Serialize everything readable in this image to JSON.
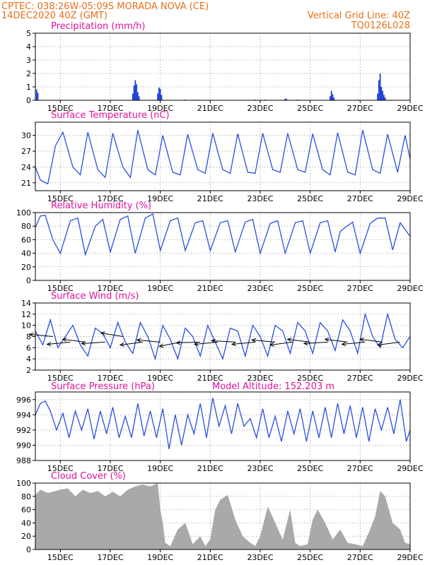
{
  "header": {
    "line1_left": "CPTEC:  038:26W-05:09S  MORADA NOVA (CE)",
    "line2_left": "14DEC2020 40Z (GMT)",
    "line1_right": "Vertical Grid Line: 40Z",
    "line2_right": "TQ0126L028"
  },
  "colors": {
    "header": "#e8701a",
    "panel_title": "#e0139c",
    "series_line": "#2a4fe0",
    "precip_bar": "#1f3fd8",
    "cloud_fill": "#a9a9a9",
    "wind_arrow": "#000000"
  },
  "chart_data": [
    {
      "type": "bar",
      "title": "Precipitation (mm/h)",
      "x_ticks": [
        "15DEC",
        "17DEC",
        "19DEC",
        "21DEC",
        "23DEC",
        "25DEC",
        "27DEC",
        "29DEC"
      ],
      "xlim_days": [
        14,
        29
      ],
      "ylim": [
        0,
        5
      ],
      "y_ticks": [
        0,
        1,
        2,
        3,
        4,
        5
      ],
      "grid": true,
      "bars": [
        {
          "day": 14.05,
          "value": 0.8
        },
        {
          "day": 14.1,
          "value": 0.55
        },
        {
          "day": 17.9,
          "value": 0.5
        },
        {
          "day": 17.95,
          "value": 1.1
        },
        {
          "day": 18.0,
          "value": 1.5
        },
        {
          "day": 18.05,
          "value": 1.2
        },
        {
          "day": 18.1,
          "value": 0.6
        },
        {
          "day": 18.15,
          "value": 0.3
        },
        {
          "day": 18.9,
          "value": 0.5
        },
        {
          "day": 18.95,
          "value": 0.95
        },
        {
          "day": 19.0,
          "value": 0.85
        },
        {
          "day": 19.05,
          "value": 0.4
        },
        {
          "day": 20.0,
          "value": 0.05
        },
        {
          "day": 20.5,
          "value": 0.04
        },
        {
          "day": 22.8,
          "value": 0.05
        },
        {
          "day": 23.2,
          "value": 0.05
        },
        {
          "day": 24.0,
          "value": 0.1
        },
        {
          "day": 24.05,
          "value": 0.12
        },
        {
          "day": 24.5,
          "value": 0.05
        },
        {
          "day": 25.8,
          "value": 0.3
        },
        {
          "day": 25.85,
          "value": 0.7
        },
        {
          "day": 25.9,
          "value": 0.45
        },
        {
          "day": 25.95,
          "value": 0.2
        },
        {
          "day": 26.9,
          "value": 0.05
        },
        {
          "day": 27.7,
          "value": 0.5
        },
        {
          "day": 27.75,
          "value": 1.5
        },
        {
          "day": 27.8,
          "value": 2.0
        },
        {
          "day": 27.85,
          "value": 1.0
        },
        {
          "day": 27.9,
          "value": 0.7
        },
        {
          "day": 27.95,
          "value": 0.4
        },
        {
          "day": 28.0,
          "value": 0.2
        }
      ]
    },
    {
      "type": "line",
      "title": "Surface Temperature (nC)",
      "x_ticks": [
        "15DEC",
        "17DEC",
        "19DEC",
        "21DEC",
        "23DEC",
        "25DEC",
        "27DEC",
        "29DEC"
      ],
      "xlim_days": [
        14,
        29
      ],
      "ylim": [
        19.5,
        32.5
      ],
      "y_ticks": [
        21,
        24,
        27,
        30
      ],
      "grid": true,
      "x_days": [
        14.0,
        14.2,
        14.5,
        14.8,
        15.1,
        15.5,
        15.8,
        16.1,
        16.5,
        16.8,
        17.1,
        17.5,
        17.8,
        18.1,
        18.5,
        18.8,
        19.1,
        19.5,
        19.8,
        20.1,
        20.5,
        20.8,
        21.1,
        21.5,
        21.8,
        22.1,
        22.5,
        22.8,
        23.1,
        23.5,
        23.8,
        24.1,
        24.5,
        24.8,
        25.1,
        25.5,
        25.8,
        26.1,
        26.5,
        26.8,
        27.1,
        27.5,
        27.8,
        28.1,
        28.5,
        28.8,
        29.0
      ],
      "values": [
        24.0,
        21.5,
        20.8,
        28.0,
        30.6,
        24.0,
        22.5,
        30.6,
        23.5,
        22.0,
        30.4,
        24.0,
        22.0,
        31.0,
        23.5,
        22.5,
        30.0,
        23.0,
        22.5,
        30.2,
        23.5,
        22.8,
        30.4,
        23.5,
        22.8,
        30.3,
        23.0,
        22.8,
        30.4,
        23.5,
        23.0,
        30.4,
        23.5,
        23.0,
        30.3,
        23.5,
        22.5,
        30.5,
        23.0,
        22.5,
        31.0,
        23.5,
        22.8,
        30.2,
        23.0,
        30.0,
        25.5
      ]
    },
    {
      "type": "line",
      "title": "Relative Humidity (%)",
      "x_ticks": [
        "15DEC",
        "17DEC",
        "19DEC",
        "21DEC",
        "23DEC",
        "25DEC",
        "27DEC",
        "29DEC"
      ],
      "xlim_days": [
        14,
        29
      ],
      "ylim": [
        0,
        100
      ],
      "y_ticks": [
        0,
        20,
        40,
        60,
        80,
        100
      ],
      "grid": true,
      "x_days": [
        14.0,
        14.2,
        14.4,
        14.7,
        15.0,
        15.4,
        15.7,
        16.0,
        16.4,
        16.7,
        17.0,
        17.4,
        17.7,
        18.0,
        18.4,
        18.7,
        19.0,
        19.4,
        19.7,
        20.0,
        20.4,
        20.7,
        21.0,
        21.4,
        21.7,
        22.0,
        22.4,
        22.7,
        23.0,
        23.4,
        23.7,
        24.0,
        24.4,
        24.7,
        25.0,
        25.4,
        25.7,
        26.0,
        26.2,
        26.4,
        26.7,
        27.0,
        27.4,
        27.7,
        28.0,
        28.3,
        28.6,
        29.0
      ],
      "values": [
        78,
        95,
        96,
        60,
        40,
        88,
        92,
        38,
        80,
        90,
        42,
        90,
        95,
        40,
        92,
        98,
        44,
        88,
        92,
        44,
        85,
        88,
        44,
        85,
        88,
        42,
        86,
        90,
        40,
        84,
        88,
        40,
        85,
        88,
        40,
        85,
        88,
        42,
        72,
        78,
        86,
        40,
        84,
        92,
        92,
        45,
        85,
        65
      ]
    },
    {
      "type": "line",
      "title": "Surface Wind (m/s)",
      "x_ticks": [
        "15DEC",
        "17DEC",
        "19DEC",
        "21DEC",
        "23DEC",
        "25DEC",
        "27DEC",
        "29DEC"
      ],
      "xlim_days": [
        14,
        29
      ],
      "ylim": [
        2,
        14
      ],
      "y_ticks": [
        2,
        4,
        6,
        8,
        10,
        12,
        14
      ],
      "grid": true,
      "x_days": [
        14.0,
        14.3,
        14.6,
        14.9,
        15.2,
        15.5,
        15.8,
        16.1,
        16.4,
        16.7,
        17.0,
        17.3,
        17.6,
        17.9,
        18.2,
        18.5,
        18.8,
        19.1,
        19.4,
        19.7,
        20.0,
        20.3,
        20.6,
        20.9,
        21.2,
        21.5,
        21.8,
        22.1,
        22.4,
        22.7,
        23.0,
        23.3,
        23.6,
        23.9,
        24.2,
        24.5,
        24.8,
        25.1,
        25.4,
        25.7,
        26.0,
        26.3,
        26.6,
        26.9,
        27.2,
        27.5,
        27.8,
        28.1,
        28.4,
        28.7,
        29.0
      ],
      "values": [
        9.0,
        6.5,
        11.0,
        6.0,
        8.0,
        10.0,
        6.5,
        4.5,
        9.5,
        8.5,
        6.0,
        10.5,
        7.0,
        5.0,
        10.5,
        8.0,
        4.0,
        10.0,
        7.5,
        4.0,
        9.5,
        8.0,
        4.5,
        10.0,
        7.0,
        4.0,
        9.5,
        9.0,
        4.5,
        10.0,
        8.0,
        4.5,
        10.0,
        9.0,
        5.0,
        10.5,
        9.0,
        5.0,
        10.5,
        9.0,
        5.5,
        11.0,
        9.0,
        5.0,
        12.0,
        8.0,
        6.0,
        12.0,
        7.5,
        6.0,
        8.0
      ],
      "arrows": [
        {
          "day": 14.7,
          "speed": 8,
          "dir_deg": 165
        },
        {
          "day": 15.4,
          "speed": 7,
          "dir_deg": 195
        },
        {
          "day": 16.0,
          "speed": 7,
          "dir_deg": 160
        },
        {
          "day": 16.8,
          "speed": 7,
          "dir_deg": 190
        },
        {
          "day": 17.5,
          "speed": 8,
          "dir_deg": 155
        },
        {
          "day": 18.3,
          "speed": 7,
          "dir_deg": 200
        },
        {
          "day": 19.0,
          "speed": 7,
          "dir_deg": 165
        },
        {
          "day": 19.8,
          "speed": 7,
          "dir_deg": 210
        },
        {
          "day": 20.6,
          "speed": 7,
          "dir_deg": 185
        },
        {
          "day": 21.3,
          "speed": 7,
          "dir_deg": 195
        },
        {
          "day": 22.0,
          "speed": 7,
          "dir_deg": 170
        },
        {
          "day": 22.8,
          "speed": 7,
          "dir_deg": 195
        },
        {
          "day": 23.6,
          "speed": 7,
          "dir_deg": 165
        },
        {
          "day": 24.3,
          "speed": 7,
          "dir_deg": 200
        },
        {
          "day": 25.0,
          "speed": 7,
          "dir_deg": 160
        },
        {
          "day": 25.7,
          "speed": 7,
          "dir_deg": 190
        },
        {
          "day": 26.5,
          "speed": 7,
          "dir_deg": 160
        },
        {
          "day": 27.2,
          "speed": 7,
          "dir_deg": 195
        },
        {
          "day": 27.9,
          "speed": 7,
          "dir_deg": 160
        },
        {
          "day": 28.6,
          "speed": 7,
          "dir_deg": 200
        }
      ]
    },
    {
      "type": "line",
      "title": "Surface Pressure (hPa)",
      "annotation": "Model Altitude: 152.203 m",
      "x_ticks": [
        "15DEC",
        "17DEC",
        "19DEC",
        "21DEC",
        "23DEC",
        "25DEC",
        "27DEC",
        "29DEC"
      ],
      "xlim_days": [
        14,
        29
      ],
      "ylim": [
        988,
        997
      ],
      "y_ticks": [
        988,
        990,
        992,
        994,
        996
      ],
      "grid": true,
      "x_days": [
        14.0,
        14.2,
        14.4,
        14.6,
        14.85,
        15.1,
        15.35,
        15.6,
        15.85,
        16.1,
        16.35,
        16.6,
        16.85,
        17.1,
        17.35,
        17.6,
        17.85,
        18.1,
        18.35,
        18.6,
        18.85,
        19.1,
        19.35,
        19.6,
        19.85,
        20.1,
        20.35,
        20.6,
        20.85,
        21.1,
        21.35,
        21.6,
        21.85,
        22.1,
        22.35,
        22.6,
        22.85,
        23.1,
        23.35,
        23.6,
        23.85,
        24.1,
        24.35,
        24.6,
        24.85,
        25.1,
        25.35,
        25.6,
        25.85,
        26.1,
        26.35,
        26.6,
        26.85,
        27.1,
        27.35,
        27.6,
        27.85,
        28.1,
        28.35,
        28.6,
        28.85,
        29.0
      ],
      "values": [
        994.0,
        995.5,
        995.8,
        994.5,
        992.0,
        994.2,
        991.0,
        994.5,
        992.0,
        994.8,
        990.8,
        994.5,
        991.5,
        995.0,
        991.0,
        993.8,
        991.0,
        995.5,
        991.2,
        994.5,
        991.0,
        994.8,
        989.5,
        994.0,
        990.0,
        994.0,
        991.5,
        995.5,
        991.0,
        996.2,
        992.5,
        995.2,
        991.5,
        995.5,
        992.5,
        993.5,
        991.0,
        994.8,
        991.0,
        993.8,
        990.5,
        994.5,
        991.5,
        994.8,
        990.5,
        994.5,
        991.0,
        995.0,
        991.0,
        995.5,
        991.5,
        995.2,
        991.0,
        995.0,
        990.5,
        994.8,
        992.0,
        995.0,
        991.5,
        996.0,
        990.5,
        992.0
      ]
    },
    {
      "type": "area",
      "title": "Cloud Cover (%)",
      "x_ticks": [
        "15DEC",
        "17DEC",
        "19DEC",
        "21DEC",
        "23DEC",
        "25DEC",
        "27DEC",
        "29DEC"
      ],
      "xlim_days": [
        14,
        29
      ],
      "ylim": [
        0,
        100
      ],
      "y_ticks": [
        0,
        20,
        40,
        60,
        80,
        100
      ],
      "grid": true,
      "x_days": [
        14.0,
        14.2,
        14.5,
        14.8,
        15.0,
        15.3,
        15.6,
        15.9,
        16.2,
        16.5,
        16.8,
        17.1,
        17.4,
        17.7,
        18.0,
        18.3,
        18.6,
        18.9,
        19.0,
        19.1,
        19.2,
        19.4,
        19.7,
        20.0,
        20.3,
        20.6,
        20.8,
        21.0,
        21.2,
        21.4,
        21.7,
        22.0,
        22.3,
        22.6,
        22.8,
        23.0,
        23.3,
        23.6,
        23.9,
        24.2,
        24.4,
        24.6,
        24.9,
        25.1,
        25.3,
        25.6,
        25.9,
        26.2,
        26.5,
        26.8,
        27.1,
        27.4,
        27.6,
        27.8,
        28.0,
        28.3,
        28.6,
        28.8,
        29.0
      ],
      "values": [
        82,
        90,
        85,
        88,
        90,
        92,
        80,
        90,
        85,
        88,
        80,
        87,
        80,
        90,
        95,
        98,
        95,
        100,
        60,
        40,
        10,
        5,
        30,
        40,
        8,
        20,
        5,
        15,
        60,
        75,
        82,
        45,
        20,
        10,
        5,
        20,
        65,
        40,
        15,
        60,
        10,
        5,
        8,
        45,
        60,
        40,
        15,
        30,
        10,
        8,
        5,
        30,
        50,
        88,
        80,
        40,
        30,
        10,
        8
      ]
    }
  ]
}
